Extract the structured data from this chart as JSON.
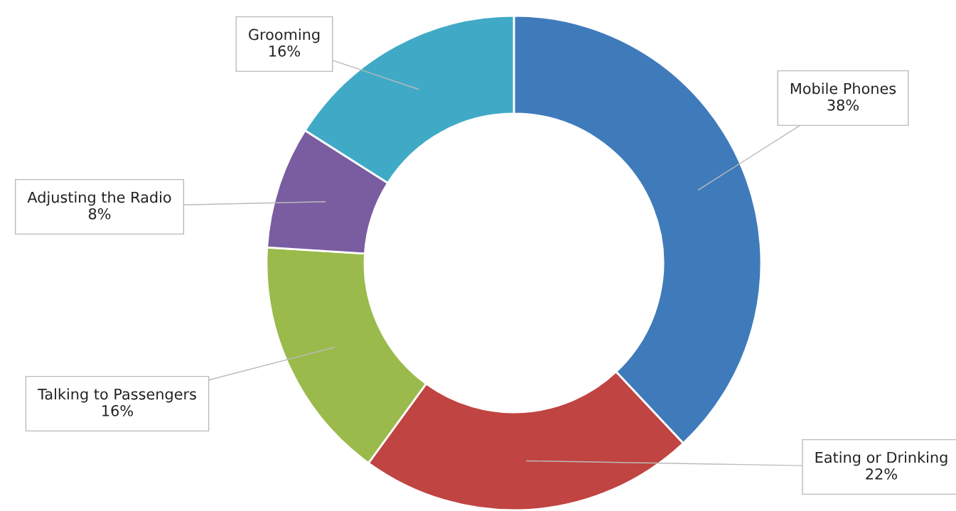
{
  "chart_data": {
    "type": "donut",
    "categories": [
      "Mobile Phones",
      "Eating or Drinking",
      "Talking to Passengers",
      "Adjusting the Radio",
      "Grooming"
    ],
    "values": [
      38,
      22,
      16,
      8,
      16
    ],
    "colors": [
      "#3f7bbb",
      "#c04441",
      "#9aba4c",
      "#7a5da0",
      "#40aac6"
    ],
    "value_labels": [
      "38%",
      "22%",
      "16%",
      "8%",
      "16%"
    ],
    "legend": false
  }
}
